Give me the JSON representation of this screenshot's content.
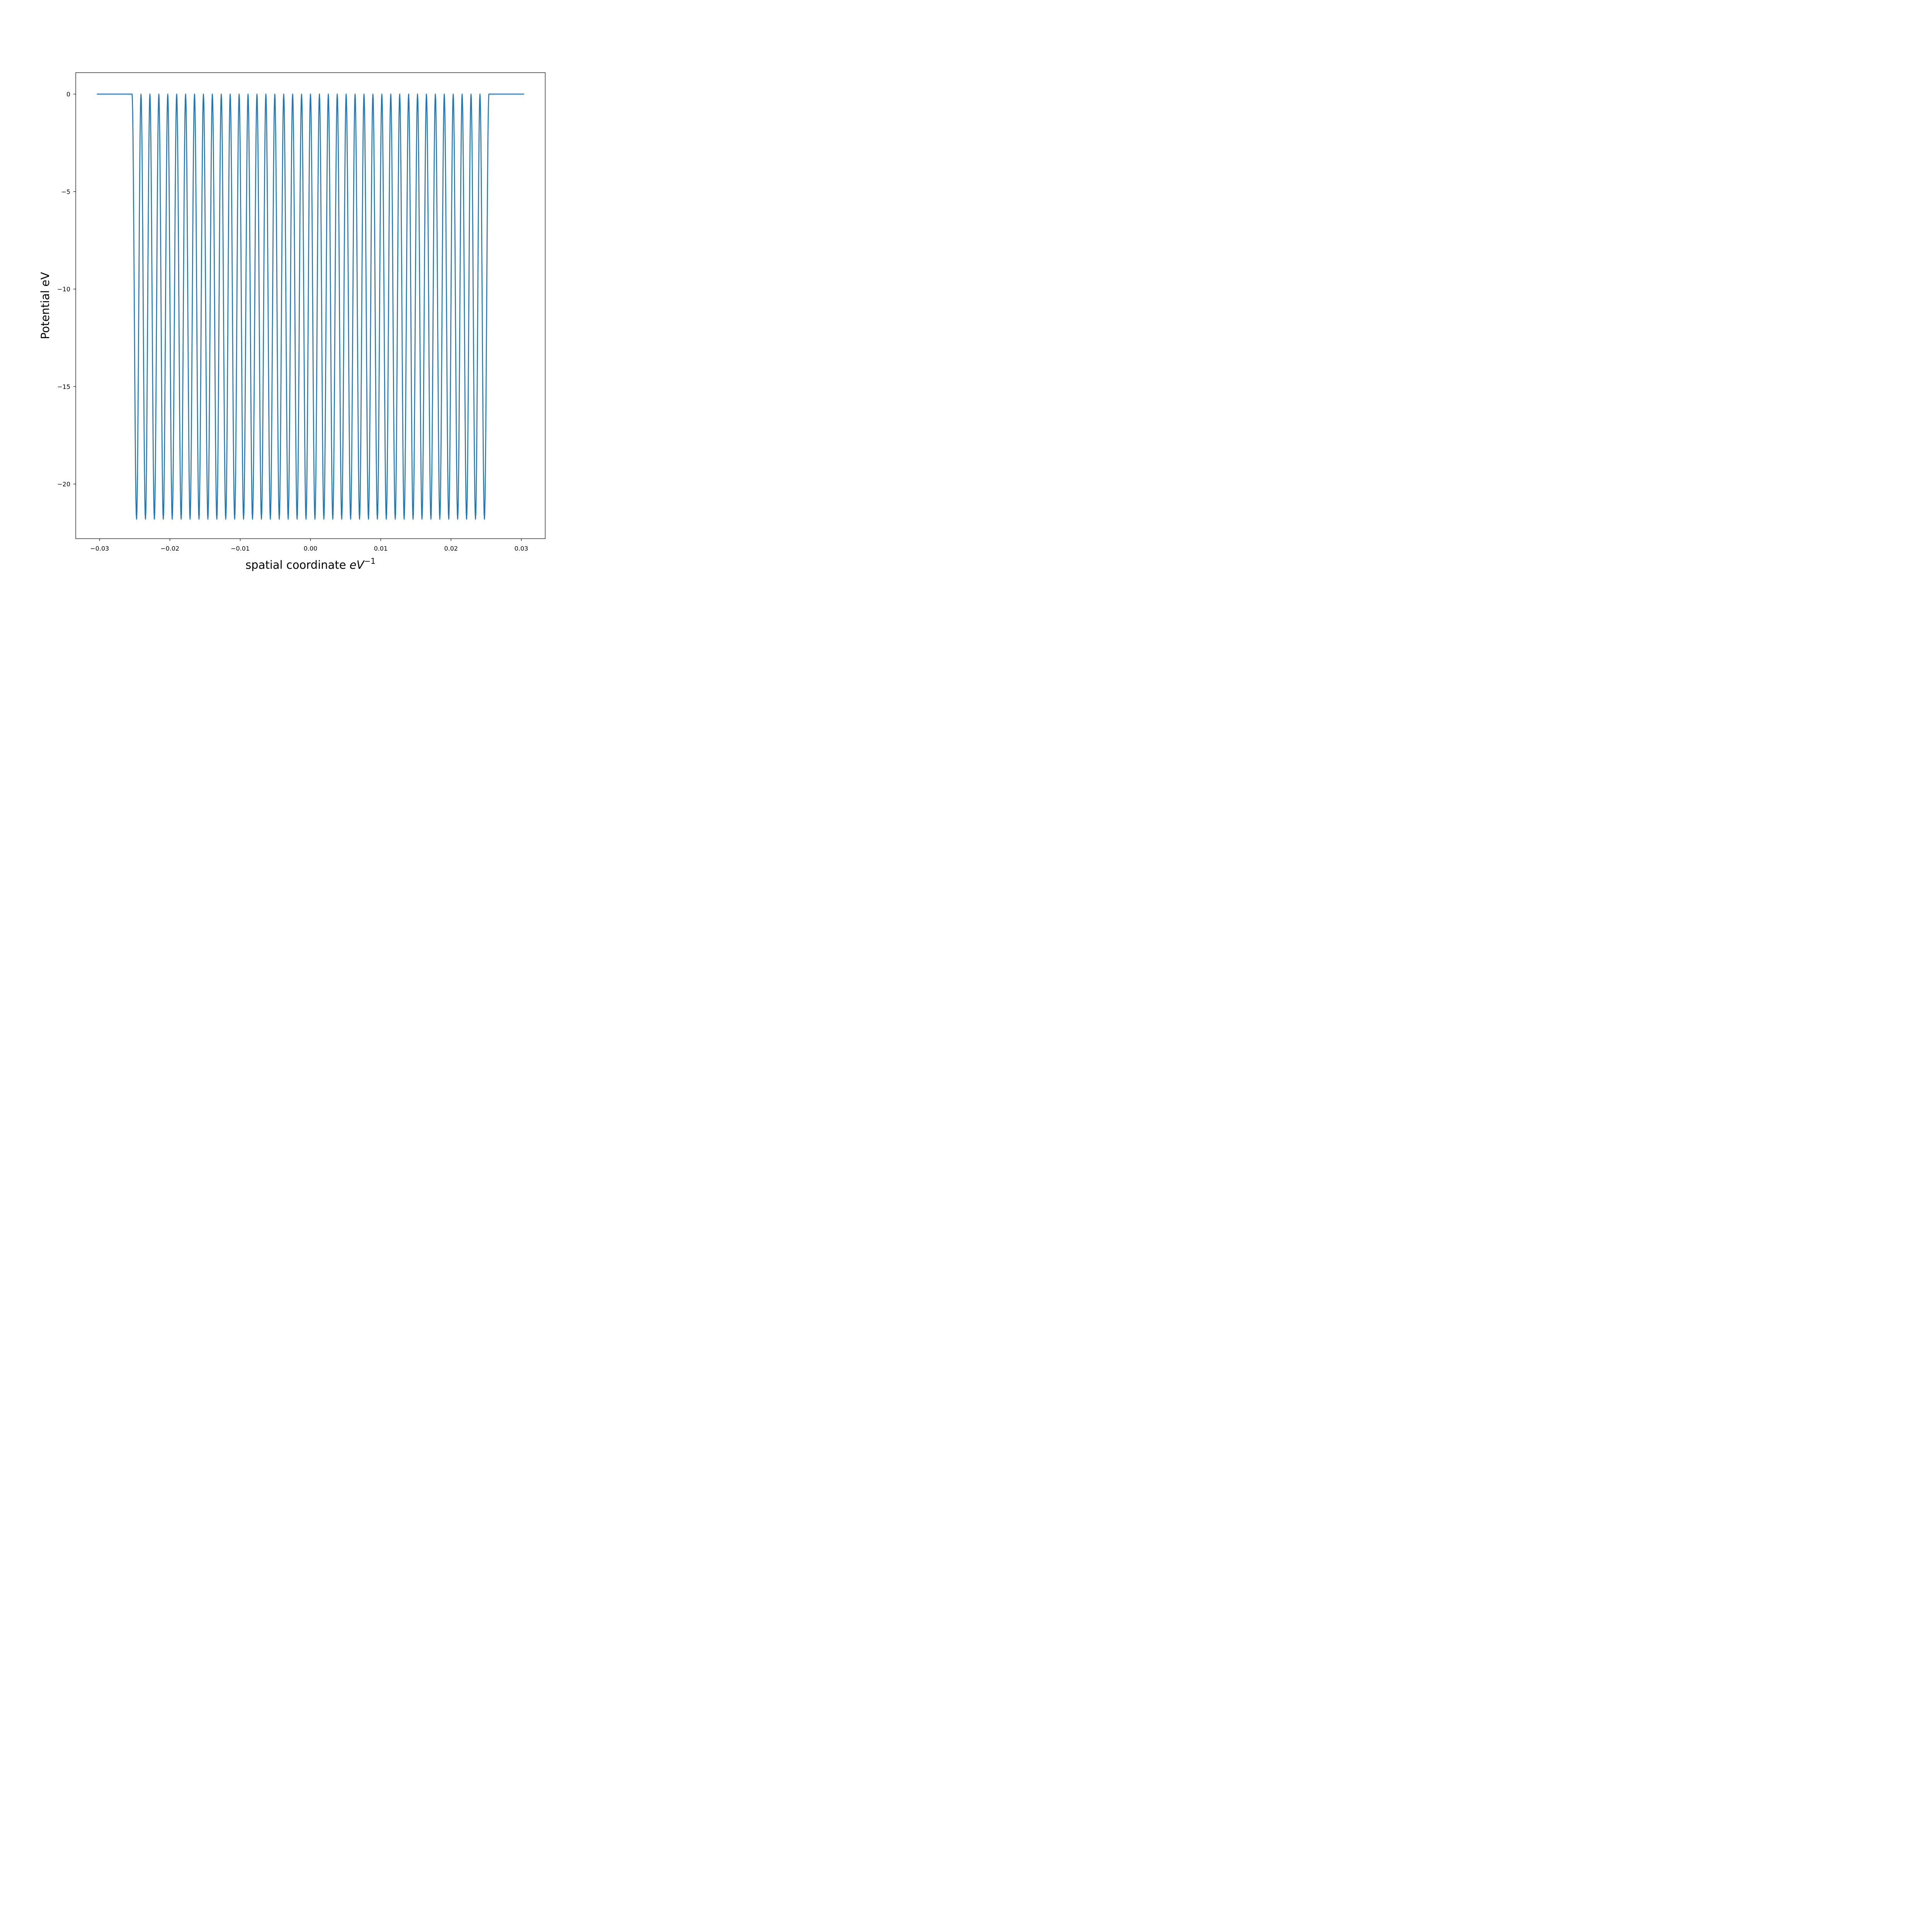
{
  "chart_data": {
    "type": "line",
    "title": "",
    "xlabel": "spatial coordinate",
    "xlabel_math": {
      "base": "eV",
      "superscript": "−1"
    },
    "ylabel": "Potential eV",
    "xlim": [
      -0.0334,
      0.0334
    ],
    "ylim": [
      -22.8,
      1.1
    ],
    "x_ticks": [
      -0.03,
      -0.02,
      -0.01,
      0.0,
      0.01,
      0.02,
      0.03
    ],
    "x_tick_labels": [
      "−0.03",
      "−0.02",
      "−0.01",
      "0.00",
      "0.01",
      "0.02",
      "0.03"
    ],
    "y_ticks": [
      0,
      -5,
      -10,
      -15,
      -20
    ],
    "y_tick_labels": [
      "0",
      "−5",
      "−10",
      "−15",
      "−20"
    ],
    "grid": false,
    "legend": "none",
    "series": [
      {
        "color": "#1f77b4",
        "x_start": -0.0304,
        "x_end": 0.0304,
        "baseline": 0,
        "wells": {
          "count": 40,
          "first_center": -0.02475,
          "last_center": 0.02475,
          "depth": -21.8,
          "shape": "squared cosine"
        },
        "points": [
          {
            "x": -0.0304,
            "y": 0
          },
          {
            "x": -0.0254,
            "y": 0
          },
          {
            "x": -0.02475,
            "y": -21.8
          },
          {
            "x": -0.0241,
            "y": 0
          },
          {
            "x": 0.0,
            "y": 0
          },
          {
            "x": 0.0241,
            "y": 0
          },
          {
            "x": 0.02475,
            "y": -21.8
          },
          {
            "x": 0.0254,
            "y": 0
          },
          {
            "x": 0.0304,
            "y": 0
          }
        ]
      }
    ]
  }
}
